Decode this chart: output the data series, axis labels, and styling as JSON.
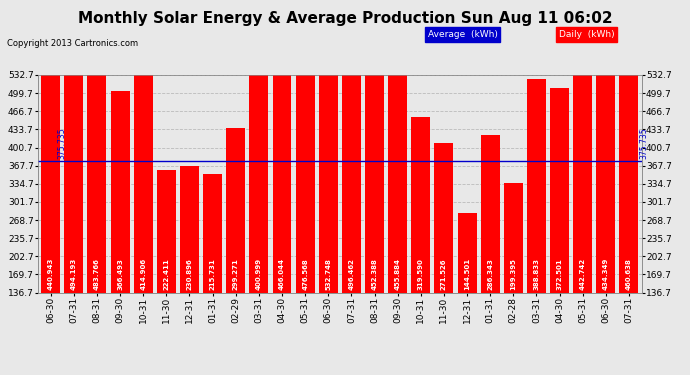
{
  "title": "Monthly Solar Energy & Average Production Sun Aug 11 06:02",
  "copyright": "Copyright 2013 Cartronics.com",
  "categories": [
    "06-30",
    "07-31",
    "08-31",
    "09-30",
    "10-31",
    "11-30",
    "12-31",
    "01-31",
    "02-29",
    "03-31",
    "04-30",
    "05-31",
    "06-30",
    "07-31",
    "08-31",
    "09-30",
    "10-31",
    "11-30",
    "12-31",
    "01-31",
    "02-28",
    "03-31",
    "04-30",
    "05-31",
    "06-30",
    "07-31"
  ],
  "values": [
    440.943,
    494.193,
    483.766,
    366.493,
    414.906,
    222.411,
    230.896,
    215.731,
    299.271,
    400.999,
    466.044,
    476.568,
    532.748,
    496.462,
    452.388,
    455.884,
    319.59,
    271.526,
    144.501,
    286.343,
    199.395,
    388.833,
    372.501,
    442.742,
    434.349,
    460.638
  ],
  "bar_color": "#ff0000",
  "average_value": 375.735,
  "average_color": "#0000cc",
  "ylim_min": 136.7,
  "ylim_max": 532.7,
  "yticks": [
    136.7,
    169.7,
    202.7,
    235.7,
    268.7,
    301.7,
    334.7,
    367.7,
    400.7,
    433.7,
    466.7,
    499.7,
    532.7
  ],
  "grid_color": "#bbbbbb",
  "background_color": "#e8e8e8",
  "plot_bg_color": "#e8e8e8",
  "title_fontsize": 11,
  "copyright_fontsize": 6,
  "bar_label_fontsize": 5,
  "tick_fontsize": 6.5,
  "legend_avg_label": "Average  (kWh)",
  "legend_daily_label": "Daily  (kWh)"
}
